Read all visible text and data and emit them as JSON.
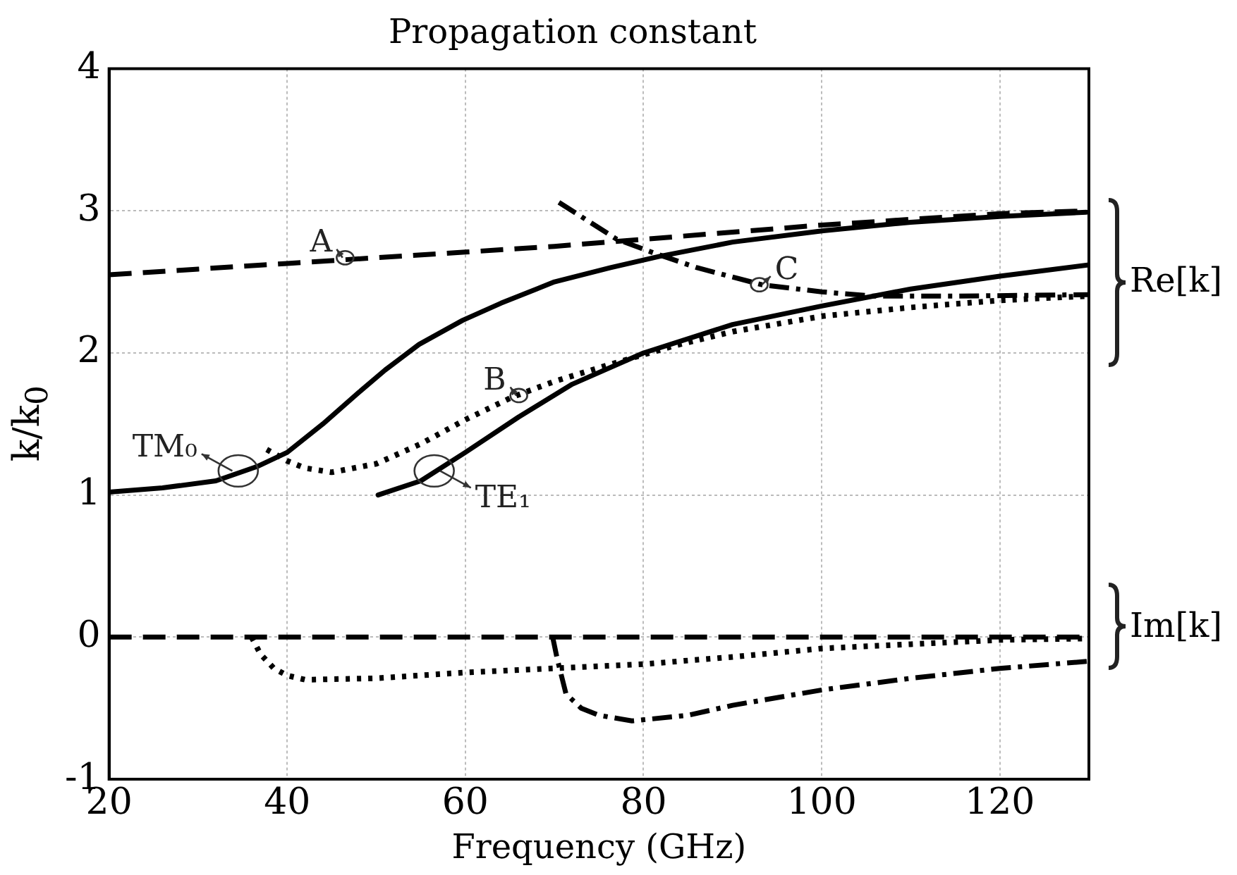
{
  "chart_data": {
    "type": "line",
    "title": "Propagation constant",
    "xlabel": "Frequency (GHz)",
    "ylabel": "k/k$_{0}$",
    "xlim": [
      20,
      130
    ],
    "xticks": [
      20,
      40,
      60,
      80,
      100,
      120
    ],
    "ylim": [
      -1,
      4
    ],
    "yticks": [
      -1,
      0,
      1,
      2,
      3,
      4
    ],
    "grid": true,
    "legend": false,
    "series": [
      {
        "color": "#000000",
        "line_style": "dashed",
        "x": [
          20,
          30,
          40,
          50,
          60,
          70,
          80,
          90,
          100,
          110,
          120,
          130
        ],
        "values": [
          2.55,
          2.59,
          2.63,
          2.67,
          2.71,
          2.75,
          2.8,
          2.85,
          2.9,
          2.94,
          2.98,
          3.0
        ]
      },
      {
        "color": "#000000",
        "line_style": "dashed",
        "x": [
          20,
          130
        ],
        "values": [
          0,
          0
        ]
      },
      {
        "color": "#000000",
        "line_style": "solid",
        "x": [
          20,
          26,
          32,
          36.6,
          40,
          44,
          48,
          51,
          54.8,
          59.7,
          64,
          70,
          76.3,
          81.8,
          90,
          100.2,
          110,
          120,
          129.7
        ],
        "values": [
          1.02,
          1.05,
          1.1,
          1.2,
          1.3,
          1.5,
          1.72,
          1.88,
          2.06,
          2.23,
          2.35,
          2.5,
          2.6,
          2.68,
          2.78,
          2.86,
          2.92,
          2.96,
          2.99
        ]
      },
      {
        "color": "#000000",
        "line_style": "dotted",
        "x": [
          37.7,
          40,
          42,
          45,
          50,
          55,
          60,
          65.3,
          70,
          76.3,
          83.4,
          90,
          100.2,
          110,
          120,
          129.7
        ],
        "values": [
          1.32,
          1.24,
          1.19,
          1.16,
          1.22,
          1.36,
          1.53,
          1.69,
          1.8,
          1.92,
          2.05,
          2.15,
          2.26,
          2.32,
          2.37,
          2.4
        ]
      },
      {
        "color": "#000000",
        "line_style": "dotted",
        "x": [
          36,
          37,
          38.5,
          40,
          42,
          50,
          59.7,
          70,
          80,
          90,
          100,
          110,
          120,
          130
        ],
        "values": [
          0,
          -0.12,
          -0.22,
          -0.27,
          -0.3,
          -0.29,
          -0.25,
          -0.22,
          -0.19,
          -0.14,
          -0.08,
          -0.05,
          -0.02,
          -0.01
        ]
      },
      {
        "color": "#000000",
        "line_style": "dashdot",
        "x": [
          70.5,
          74,
          77,
          81.3,
          86,
          93.3,
          100,
          105.8,
          115,
          130
        ],
        "values": [
          3.06,
          2.92,
          2.8,
          2.7,
          2.6,
          2.48,
          2.43,
          2.4,
          2.4,
          2.41
        ]
      },
      {
        "color": "#000000",
        "line_style": "dashdot",
        "x": [
          69.8,
          70.3,
          71.3,
          73,
          75,
          78.7,
          85,
          90,
          100.2,
          110,
          120,
          130
        ],
        "values": [
          0,
          -0.15,
          -0.4,
          -0.5,
          -0.55,
          -0.59,
          -0.55,
          -0.48,
          -0.37,
          -0.29,
          -0.22,
          -0.17
        ]
      },
      {
        "color": "#000000",
        "line_style": "solid",
        "x": [
          50.2,
          55,
          60,
          66,
          72,
          80,
          90,
          100,
          110,
          120,
          130
        ],
        "values": [
          1.0,
          1.1,
          1.3,
          1.55,
          1.78,
          2.0,
          2.2,
          2.33,
          2.45,
          2.54,
          2.62
        ]
      }
    ],
    "annotations": [
      {
        "text": "A",
        "x": 46.5,
        "y": 2.67
      },
      {
        "text": "B",
        "x": 66,
        "y": 1.7
      },
      {
        "text": "C",
        "x": 93,
        "y": 2.48
      },
      {
        "text": "TM₀",
        "x": 34.5,
        "y": 1.17
      },
      {
        "text": "TE₁",
        "x": 56.5,
        "y": 1.17
      },
      "Re[k]",
      "Im[k]"
    ]
  }
}
